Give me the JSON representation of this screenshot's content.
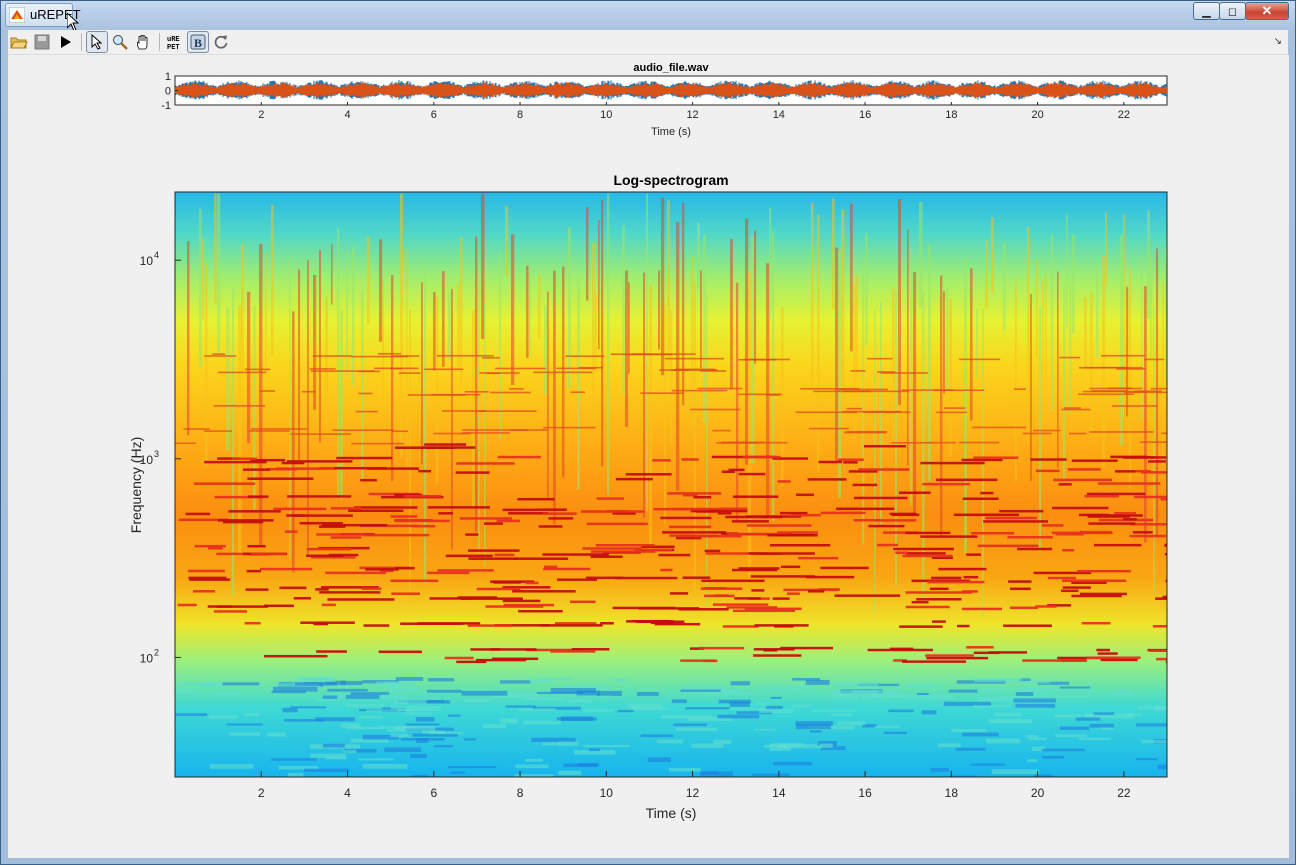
{
  "window": {
    "title": "uREPET"
  },
  "toolbar": {
    "buttons": [
      {
        "name": "open-icon",
        "glyph": "📂"
      },
      {
        "name": "save-icon",
        "glyph": "💾"
      },
      {
        "name": "play-icon",
        "glyph": "▶"
      },
      {
        "name": "select-icon",
        "glyph": "⬚"
      },
      {
        "name": "zoom-icon",
        "glyph": "🔍"
      },
      {
        "name": "pan-icon",
        "glyph": "✋"
      },
      {
        "name": "urepet-icon",
        "glyph": "uRE\nPET"
      },
      {
        "name": "background-icon",
        "glyph": "B"
      },
      {
        "name": "undo-icon",
        "glyph": "↻"
      }
    ]
  },
  "waveform": {
    "title": "audio_file.wav",
    "xlabel": "Time (s)",
    "yticks": [
      "1",
      "0",
      "-1"
    ],
    "xticks": [
      "2",
      "4",
      "6",
      "8",
      "10",
      "12",
      "14",
      "16",
      "18",
      "20",
      "22"
    ],
    "colors": {
      "channel1": "#1f77b4",
      "channel2": "#d95319"
    }
  },
  "spectrogram": {
    "title": "Log-spectrogram",
    "xlabel": "Time (s)",
    "ylabel": "Frequency (Hz)",
    "yticks": [
      {
        "base": "10",
        "exp": "4"
      },
      {
        "base": "10",
        "exp": "3"
      },
      {
        "base": "10",
        "exp": "2"
      }
    ],
    "xticks": [
      "2",
      "4",
      "6",
      "8",
      "10",
      "12",
      "14",
      "16",
      "18",
      "20",
      "22"
    ],
    "colormap": "jet"
  },
  "chart_data": [
    {
      "type": "line",
      "title": "audio_file.wav",
      "xlabel": "Time (s)",
      "xlim": [
        0,
        23
      ],
      "ylim": [
        -1,
        1
      ],
      "xticks": [
        2,
        4,
        6,
        8,
        10,
        12,
        14,
        16,
        18,
        20,
        22
      ],
      "yticks": [
        1,
        0,
        -1
      ]
    },
    {
      "type": "heatmap",
      "title": "Log-spectrogram",
      "xlabel": "Time (s)",
      "ylabel": "Frequency (Hz)",
      "xlim": [
        0,
        23
      ],
      "ylim": [
        25,
        22050
      ],
      "yscale": "log",
      "xticks": [
        2,
        4,
        6,
        8,
        10,
        12,
        14,
        16,
        18,
        20,
        22
      ],
      "yticks": [
        100,
        1000,
        10000
      ]
    }
  ]
}
